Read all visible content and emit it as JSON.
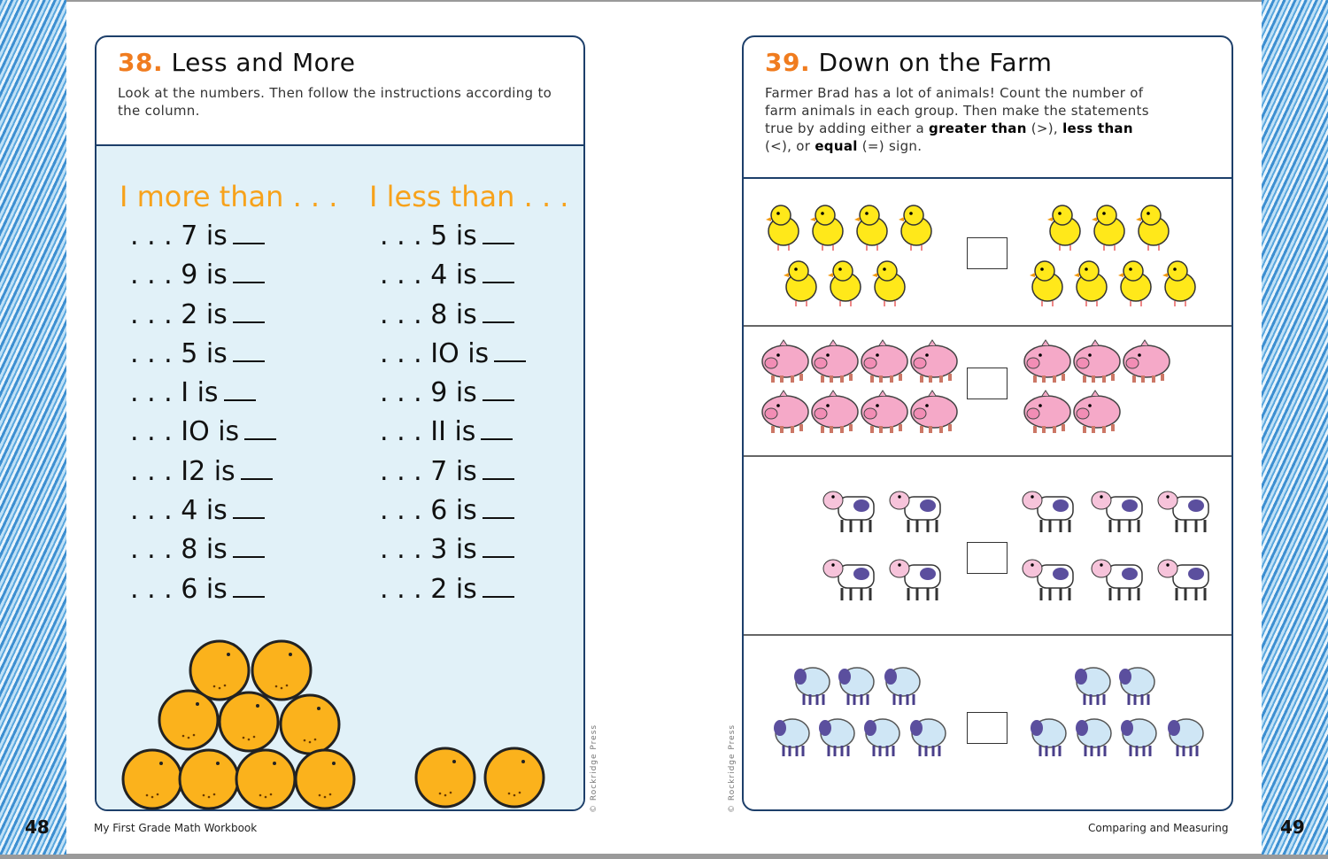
{
  "left_page": {
    "number": "48",
    "footer": "My First Grade Math Workbook",
    "copyright": "© Rockridge Press",
    "activity_number": "38.",
    "title": "Less and More",
    "description": "Look at the numbers. Then follow the instructions according to the column.",
    "columns": [
      {
        "heading": "I more than . . .",
        "rows": [
          ". . . 7 is",
          ". . . 9 is",
          ". . . 2 is",
          ". . . 5 is",
          ". . . I is",
          ". . . IO is",
          ". . . I2 is",
          ". . . 4 is",
          ". . . 8 is",
          ". . . 6 is"
        ]
      },
      {
        "heading": "I less than . . .",
        "rows": [
          ". . . 5 is",
          ". . . 4 is",
          ". . . 8 is",
          ". . . IO is",
          ". . . 9 is",
          ". . . II is",
          ". . . 7 is",
          ". . . 6 is",
          ". . . 3 is",
          ". . . 2 is"
        ]
      }
    ],
    "illustration": {
      "type": "oranges",
      "pyramid_count": 9,
      "separate_count": 2
    }
  },
  "right_page": {
    "number": "49",
    "footer": "Comparing and Measuring",
    "copyright": "© Rockridge Press",
    "activity_number": "39.",
    "title": "Down on the Farm",
    "description_parts": [
      "Farmer Brad has a lot of animals! Count the number of farm animals in each group. Then make the statements true by adding either a ",
      "greater than",
      " (>), ",
      "less than",
      " (<), or ",
      "equal",
      " (=) sign."
    ],
    "groups": [
      {
        "animal": "chick",
        "left_count": 7,
        "right_count": 7
      },
      {
        "animal": "pig",
        "left_count": 8,
        "right_count": 5
      },
      {
        "animal": "cow",
        "left_count": 4,
        "right_count": 6
      },
      {
        "animal": "sheep",
        "left_count": 7,
        "right_count": 6
      }
    ]
  },
  "colors": {
    "accent_orange": "#f07c1f",
    "heading_orange": "#f7a21b",
    "panel_blue": "#e1f1f8",
    "border_navy": "#1d3f6a",
    "crayon_blue": "#3d8fd1"
  }
}
